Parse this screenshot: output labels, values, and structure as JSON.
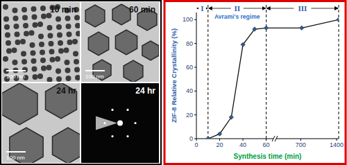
{
  "chart_data": {
    "type": "line",
    "x_label": "Synthesis time (min)",
    "y_label": "ZIF-8 Relative Crystallinity (%)",
    "x": [
      10,
      20,
      30,
      40,
      50,
      60,
      720,
      1440
    ],
    "values": [
      0,
      4,
      18,
      79,
      92,
      93,
      93,
      100
    ],
    "color": "#111111",
    "marker": "diamond",
    "xlim": [
      0,
      1440
    ],
    "x_break": [
      65,
      250
    ],
    "xticks": [
      0,
      20,
      40,
      60,
      700,
      1400
    ],
    "ylim": [
      0,
      106
    ],
    "yticks": [
      0,
      20,
      40,
      60,
      80,
      100
    ],
    "regions": [
      {
        "label": "I",
        "from": 0,
        "to": 10
      },
      {
        "label": "II",
        "from": 10,
        "to": 60,
        "annotation": "Avrami's regime"
      },
      {
        "label": "III",
        "from": 60,
        "to": 1440
      }
    ]
  },
  "micrographs": [
    {
      "label": "10 min",
      "scale_bar": "100 nm"
    },
    {
      "label": "60 min",
      "scale_bar": "100 nm"
    },
    {
      "label": "24 hr",
      "scale_bar": "100 nm"
    },
    {
      "label": "24 hr"
    }
  ]
}
